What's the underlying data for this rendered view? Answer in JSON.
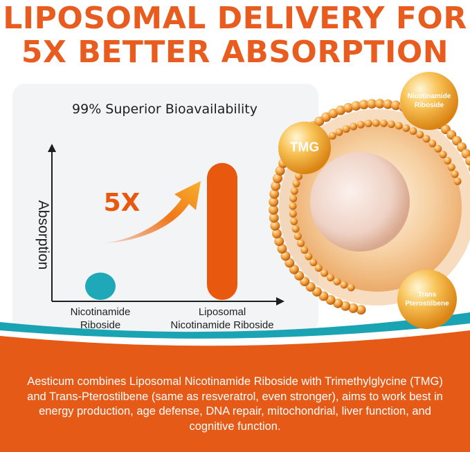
{
  "headline": {
    "line1": "LIPOSOMAL DELIVERY FOR",
    "line2": "5X BETTER ABSORPTION"
  },
  "chart_data": {
    "type": "bar",
    "title": "99% Superior Bioavailability",
    "ylabel": "Absorption",
    "xlabel": "",
    "categories": [
      "Nicotinamide Riboside",
      "Liposomal Nicotinamide Riboside"
    ],
    "category_lines": [
      [
        "Nicotinamide",
        "Riboside"
      ],
      [
        "Liposomal",
        "Nicotinamide Riboside"
      ]
    ],
    "values": [
      1,
      5
    ],
    "ylim": [
      0,
      5.6
    ],
    "colors": [
      "#1fa9b8",
      "#e8580f"
    ],
    "annotation": "5X",
    "grid": false,
    "legend": "none"
  },
  "ingredients": {
    "tmg": "TMG",
    "nr_line1": "Nicotinamide",
    "nr_line2": "Riboside",
    "ps_line1": "Trans",
    "ps_line2": "Pterostilbene"
  },
  "description": "Aesticum combines Liposomal Nicotinamide Riboside with Trimethylglycine (TMG) and Trans-Pterostilbene (same as resveratrol, even stronger), aims to work best in energy production, age defense, DNA repair, mitochondrial, liver function, and cognitive function.",
  "colors": {
    "accent": "#e85d1f",
    "teal": "#1fa9b8",
    "band": "#e55a17",
    "gold": "#f3a93a"
  }
}
